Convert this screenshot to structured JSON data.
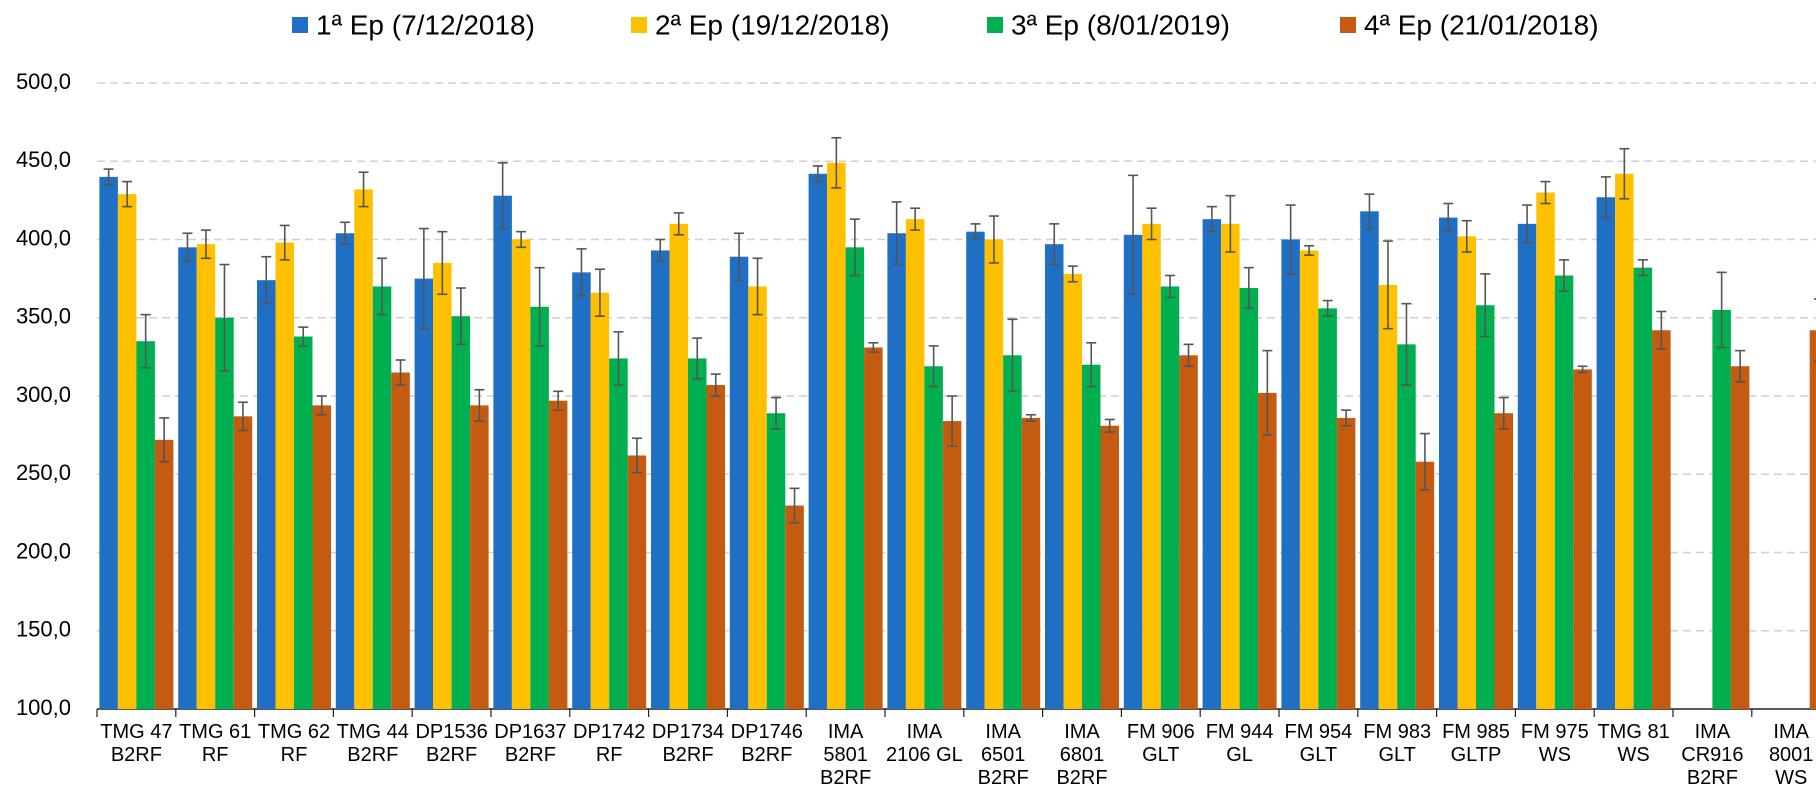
{
  "chart_data": {
    "type": "bar",
    "categories": [
      "TMG 47\nB2RF",
      "TMG 61\nRF",
      "TMG 62\nRF",
      "TMG 44\nB2RF",
      "DP1536\nB2RF",
      "DP1637\nB2RF",
      "DP1742\nRF",
      "DP1734\nB2RF",
      "DP1746\nB2RF",
      "IMA\n5801\nB2RF",
      "IMA\n2106 GL",
      "IMA\n6501\nB2RF",
      "IMA\n6801\nB2RF",
      "FM 906\nGLT",
      "FM 944\nGL",
      "FM 954\nGLT",
      "FM 983\nGLT",
      "FM 985\nGLTP",
      "FM 975\nWS",
      "TMG 81\nWS",
      "IMA\nCR916\nB2RF",
      "IMA\n8001\nWS"
    ],
    "series": [
      {
        "name": "1ª Ep (7/12/2018)",
        "color": "#1f6fc5",
        "values": [
          440,
          395,
          374,
          404,
          375,
          428,
          379,
          393,
          389,
          442,
          404,
          405,
          397,
          403,
          413,
          400,
          418,
          414,
          410,
          427,
          null,
          null
        ],
        "errors": [
          5,
          9,
          15,
          7,
          32,
          21,
          15,
          7,
          15,
          5,
          20,
          5,
          13,
          38,
          8,
          22,
          11,
          9,
          12,
          13,
          null,
          null
        ]
      },
      {
        "name": "2ª Ep (19/12/2018)",
        "color": "#ffc000",
        "values": [
          429,
          397,
          398,
          432,
          385,
          400,
          366,
          410,
          370,
          449,
          413,
          400,
          378,
          410,
          410,
          393,
          371,
          402,
          430,
          442,
          null,
          null
        ],
        "errors": [
          8,
          9,
          11,
          11,
          20,
          5,
          15,
          7,
          18,
          16,
          7,
          15,
          5,
          10,
          18,
          3,
          28,
          10,
          7,
          16,
          null,
          null
        ]
      },
      {
        "name": "3ª Ep (8/01/2019)",
        "color": "#00b050",
        "values": [
          335,
          350,
          338,
          370,
          351,
          357,
          324,
          324,
          289,
          395,
          319,
          326,
          320,
          370,
          369,
          356,
          333,
          358,
          377,
          382,
          355,
          null
        ],
        "errors": [
          17,
          34,
          6,
          18,
          18,
          25,
          17,
          13,
          10,
          18,
          13,
          23,
          14,
          7,
          13,
          5,
          26,
          20,
          10,
          5,
          24,
          null
        ]
      },
      {
        "name": "4ª Ep (21/01/2018)",
        "color": "#c55a11",
        "values": [
          272,
          287,
          294,
          315,
          294,
          297,
          262,
          307,
          230,
          331,
          284,
          286,
          281,
          326,
          302,
          286,
          258,
          289,
          317,
          342,
          319,
          342
        ],
        "errors": [
          14,
          9,
          6,
          8,
          10,
          6,
          11,
          7,
          11,
          3,
          16,
          2,
          4,
          7,
          27,
          5,
          18,
          10,
          2,
          12,
          10,
          20
        ]
      }
    ],
    "ylim": [
      100,
      500
    ],
    "yticks": [
      {
        "value": 100,
        "label": "100,0"
      },
      {
        "value": 150,
        "label": "150,0"
      },
      {
        "value": 200,
        "label": "200,0"
      },
      {
        "value": 250,
        "label": "250,0"
      },
      {
        "value": 300,
        "label": "300,0"
      },
      {
        "value": 350,
        "label": "350,0"
      },
      {
        "value": 400,
        "label": "400,0"
      },
      {
        "value": 450,
        "label": "450,0"
      },
      {
        "value": 500,
        "label": "500,0"
      }
    ],
    "grid": true,
    "legend": "top"
  }
}
